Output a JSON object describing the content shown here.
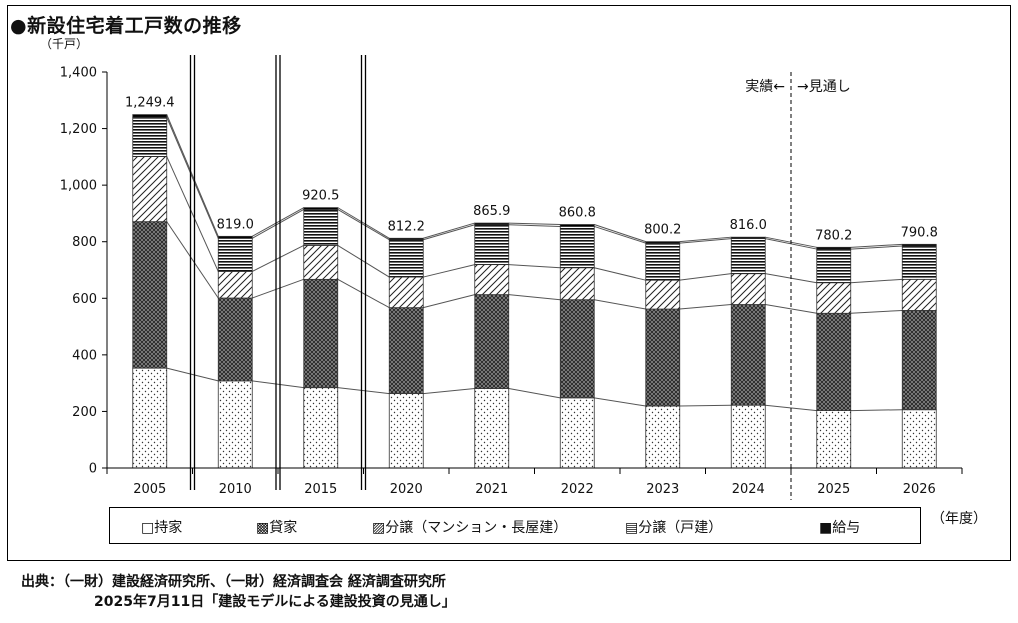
{
  "title": "●新設住宅着工戸数の推移",
  "unit_label": "（千戸）",
  "x_unit_label": "（年度）",
  "actual_label": "実績←",
  "forecast_label": "→見通し",
  "source": {
    "line1": "出典：（一財）建設経済研究所、（一財）経済調査会 経済調査研究所",
    "line2": "2025年7月11日「建設モデルによる建設投資の見通し」"
  },
  "colors": {
    "axis": "#000000",
    "bar_border": "#333333"
  },
  "chart_data": {
    "type": "bar",
    "stacked": true,
    "categories": [
      "2005",
      "2010",
      "2015",
      "2020",
      "2021",
      "2022",
      "2023",
      "2024",
      "2025",
      "2026"
    ],
    "ylim": [
      0,
      1400
    ],
    "yticks": [
      0,
      200,
      400,
      600,
      800,
      1000,
      1200,
      1400
    ],
    "ytick_labels": [
      "0",
      "200",
      "400",
      "600",
      "800",
      "1,000",
      "1,200",
      "1,400"
    ],
    "totals": [
      1249.4,
      819.0,
      920.5,
      812.2,
      865.9,
      860.8,
      800.2,
      816.0,
      780.2,
      790.8
    ],
    "total_labels": [
      "1,249.4",
      "819.0",
      "920.5",
      "812.2",
      "865.9",
      "860.8",
      "800.2",
      "816.0",
      "780.2",
      "790.8"
    ],
    "forecast_from": "2025",
    "series": [
      {
        "name": "持家",
        "legend": "□持家",
        "pattern": "dots",
        "values": [
          353,
          308,
          284,
          263,
          281,
          248,
          219,
          222,
          203,
          206
        ]
      },
      {
        "name": "貸家",
        "legend": "▩貸家",
        "pattern": "crosshatch",
        "values": [
          518,
          293,
          383,
          304,
          332,
          347,
          343,
          356,
          344,
          351
        ]
      },
      {
        "name": "分譲（マンション・長屋建）",
        "legend": "▨分譲（マンション・長屋建）",
        "pattern": "diag",
        "values": [
          230,
          94,
          120,
          108,
          106,
          113,
          102,
          109,
          108,
          110
        ]
      },
      {
        "name": "分譲（戸建）",
        "legend": "▤分譲（戸建）",
        "pattern": "hlines",
        "values": [
          139,
          117,
          127,
          132,
          141,
          146,
          131,
          124,
          119,
          118
        ]
      },
      {
        "name": "給与",
        "legend": "■給与",
        "pattern": "solid",
        "values": [
          9.4,
          7.0,
          6.5,
          5.2,
          5.9,
          6.8,
          5.2,
          5.0,
          6.2,
          5.8
        ]
      }
    ]
  }
}
